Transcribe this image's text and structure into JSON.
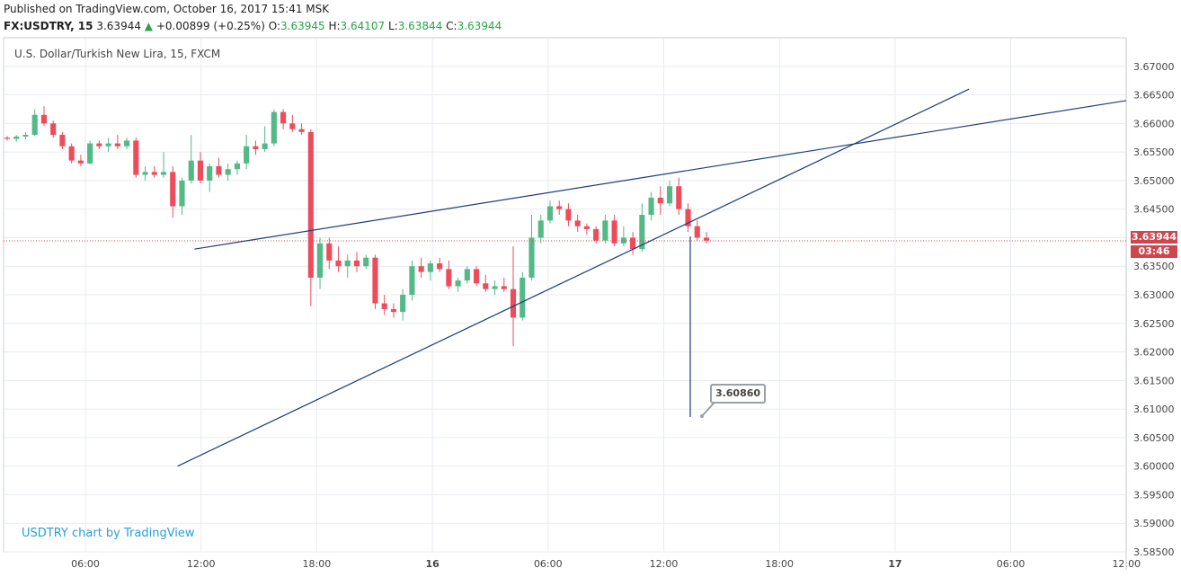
{
  "header": {
    "published": "Published on TradingView.com, October 16, 2017 15:41 MSK",
    "symbol": "FX:USDTRY, 15",
    "last": "3.63944",
    "change_arrow": "▲",
    "change": "+0.00899 (+0.25%)",
    "o_label": "O:",
    "o_val": "3.63945",
    "h_label": "H:",
    "h_val": "3.64107",
    "l_label": "L:",
    "l_val": "3.63844",
    "c_label": "C:",
    "c_val": "3.63944"
  },
  "colors": {
    "up": "#53b987",
    "down": "#eb4d5c",
    "trend": "#1c3f7a",
    "price_line": "#d0464f",
    "grid": "#e8ebef"
  },
  "price_tag": {
    "value": "3.63944",
    "countdown": "03:46"
  },
  "callout_value": "3.60860",
  "watermark": "USDTRY chart by TradingView",
  "chart_data": {
    "type": "candlestick",
    "title": "U.S. Dollar/Turkish New Lira, 15, FXCM",
    "ylim": [
      3.585,
      3.675
    ],
    "y_ticks": [
      "3.67000",
      "3.66500",
      "3.66000",
      "3.65500",
      "3.65000",
      "3.64500",
      "3.64000",
      "3.63500",
      "3.63000",
      "3.62500",
      "3.62000",
      "3.61500",
      "3.61000",
      "3.60500",
      "3.60000",
      "3.59500",
      "3.59000",
      "3.58500"
    ],
    "x_ticks": [
      "06:00",
      "12:00",
      "18:00",
      "16",
      "06:00",
      "12:00",
      "18:00",
      "17",
      "06:00",
      "12:00"
    ],
    "candles": [
      [
        3.6575,
        3.6578,
        3.657,
        3.6573
      ],
      [
        3.6573,
        3.658,
        3.6568,
        3.6577
      ],
      [
        3.6577,
        3.6585,
        3.6572,
        3.658
      ],
      [
        3.658,
        3.6625,
        3.6578,
        3.6615
      ],
      [
        3.6615,
        3.663,
        3.6595,
        3.66
      ],
      [
        3.66,
        3.6605,
        3.6575,
        3.658
      ],
      [
        3.658,
        3.6585,
        3.6555,
        3.656
      ],
      [
        3.656,
        3.6565,
        3.653,
        3.6535
      ],
      [
        3.6535,
        3.6545,
        3.6525,
        3.653
      ],
      [
        3.653,
        3.657,
        3.6528,
        3.6565
      ],
      [
        3.6565,
        3.657,
        3.6555,
        3.656
      ],
      [
        3.656,
        3.6575,
        3.655,
        3.6565
      ],
      [
        3.6565,
        3.658,
        3.6555,
        3.656
      ],
      [
        3.656,
        3.6575,
        3.6555,
        3.657
      ],
      [
        3.657,
        3.6575,
        3.6505,
        3.651
      ],
      [
        3.651,
        3.6525,
        3.65,
        3.6515
      ],
      [
        3.6515,
        3.6525,
        3.6505,
        3.651
      ],
      [
        3.651,
        3.655,
        3.6505,
        3.6515
      ],
      [
        3.6515,
        3.6525,
        3.6435,
        3.6455
      ],
      [
        3.6455,
        3.6505,
        3.644,
        3.65
      ],
      [
        3.65,
        3.658,
        3.6495,
        3.6535
      ],
      [
        3.6535,
        3.655,
        3.6495,
        3.65
      ],
      [
        3.65,
        3.653,
        3.648,
        3.6525
      ],
      [
        3.6525,
        3.654,
        3.6505,
        3.651
      ],
      [
        3.651,
        3.653,
        3.65,
        3.652
      ],
      [
        3.652,
        3.6535,
        3.651,
        3.653
      ],
      [
        3.653,
        3.658,
        3.652,
        3.656
      ],
      [
        3.656,
        3.657,
        3.6545,
        3.6555
      ],
      [
        3.6555,
        3.6595,
        3.655,
        3.6565
      ],
      [
        3.6565,
        3.6625,
        3.656,
        3.662
      ],
      [
        3.662,
        3.6625,
        3.659,
        3.66
      ],
      [
        3.66,
        3.6615,
        3.6585,
        3.659
      ],
      [
        3.659,
        3.66,
        3.658,
        3.6585
      ],
      [
        3.6585,
        3.659,
        3.628,
        3.633
      ],
      [
        3.633,
        3.64,
        3.631,
        3.639
      ],
      [
        3.639,
        3.64,
        3.6345,
        3.636
      ],
      [
        3.636,
        3.6385,
        3.634,
        3.635
      ],
      [
        3.635,
        3.637,
        3.633,
        3.636
      ],
      [
        3.636,
        3.6375,
        3.634,
        3.635
      ],
      [
        3.635,
        3.637,
        3.6345,
        3.6365
      ],
      [
        3.6365,
        3.637,
        3.6275,
        3.6285
      ],
      [
        3.6285,
        3.63,
        3.6265,
        3.6275
      ],
      [
        3.6275,
        3.6285,
        3.626,
        3.627
      ],
      [
        3.627,
        3.631,
        3.6255,
        3.63
      ],
      [
        3.63,
        3.636,
        3.629,
        3.635
      ],
      [
        3.635,
        3.6365,
        3.633,
        3.634
      ],
      [
        3.634,
        3.636,
        3.6325,
        3.6355
      ],
      [
        3.6355,
        3.6365,
        3.634,
        3.6345
      ],
      [
        3.6345,
        3.636,
        3.631,
        3.6315
      ],
      [
        3.6315,
        3.633,
        3.6305,
        3.6325
      ],
      [
        3.6325,
        3.635,
        3.632,
        3.6345
      ],
      [
        3.6345,
        3.635,
        3.6315,
        3.632
      ],
      [
        3.632,
        3.6335,
        3.6305,
        3.631
      ],
      [
        3.631,
        3.6325,
        3.63,
        3.6315
      ],
      [
        3.6315,
        3.633,
        3.6305,
        3.631
      ],
      [
        3.631,
        3.6385,
        3.621,
        3.626
      ],
      [
        3.626,
        3.634,
        3.6255,
        3.633
      ],
      [
        3.633,
        3.644,
        3.6325,
        3.64
      ],
      [
        3.64,
        3.644,
        3.639,
        3.643
      ],
      [
        3.643,
        3.6465,
        3.6425,
        3.6455
      ],
      [
        3.6455,
        3.6465,
        3.644,
        3.645
      ],
      [
        3.645,
        3.646,
        3.642,
        3.643
      ],
      [
        3.643,
        3.644,
        3.641,
        3.642
      ],
      [
        3.642,
        3.6425,
        3.6405,
        3.6415
      ],
      [
        3.6415,
        3.642,
        3.639,
        3.6395
      ],
      [
        3.6395,
        3.644,
        3.639,
        3.643
      ],
      [
        3.643,
        3.644,
        3.6385,
        3.639
      ],
      [
        3.639,
        3.642,
        3.6385,
        3.64
      ],
      [
        3.64,
        3.641,
        3.637,
        3.638
      ],
      [
        3.638,
        3.646,
        3.6375,
        3.644
      ],
      [
        3.644,
        3.648,
        3.643,
        3.647
      ],
      [
        3.647,
        3.649,
        3.644,
        3.646
      ],
      [
        3.646,
        3.65,
        3.6455,
        3.649
      ],
      [
        3.649,
        3.6505,
        3.644,
        3.645
      ],
      [
        3.645,
        3.646,
        3.641,
        3.642
      ],
      [
        3.642,
        3.643,
        3.6395,
        3.64
      ],
      [
        3.64,
        3.641,
        3.639,
        3.6395
      ]
    ],
    "trendlines": [
      {
        "from": {
          "x": 0.17,
          "y": 3.638
        },
        "to": {
          "x": 1.0,
          "y": 3.664
        }
      },
      {
        "from": {
          "x": 0.155,
          "y": 3.6
        },
        "to": {
          "x": 0.86,
          "y": 3.666
        }
      }
    ],
    "target_value": 3.6086,
    "last_price": 3.63944
  }
}
